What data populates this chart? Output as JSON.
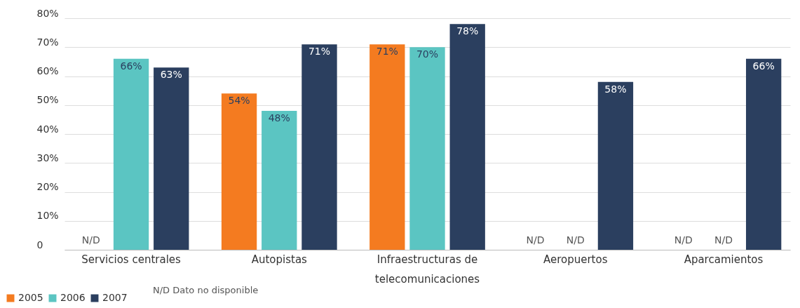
{
  "chart_data": {
    "type": "bar",
    "categories": [
      "Servicios centrales",
      "Autopistas",
      "Infraestructuras de telecomunicaciones",
      "Aeropuertos",
      "Aparcamientos"
    ],
    "series": [
      {
        "name": "2005",
        "color": "#f47b20",
        "values": [
          null,
          54,
          71,
          null,
          null
        ],
        "value_labels": [
          "N/D",
          "54%",
          "71%",
          "N/D",
          "N/D"
        ]
      },
      {
        "name": "2006",
        "color": "#5bc5c2",
        "values": [
          66,
          48,
          70,
          null,
          null
        ],
        "value_labels": [
          "66%",
          "48%",
          "70%",
          "N/D",
          "N/D"
        ]
      },
      {
        "name": "2007",
        "color": "#2b3f5f",
        "values": [
          63,
          71,
          78,
          58,
          66
        ],
        "value_labels": [
          "63%",
          "71%",
          "78%",
          "58%",
          "66%"
        ]
      }
    ],
    "ylim": [
      0,
      80
    ],
    "yticks": [
      0,
      {
        "value": 10,
        "label": "10%"
      },
      {
        "value": 20,
        "label": "20%"
      },
      {
        "value": 30,
        "label": "30%"
      },
      {
        "value": 40,
        "label": "40%"
      },
      {
        "value": 50,
        "label": "50%"
      },
      {
        "value": 60,
        "label": "60%"
      },
      {
        "value": 70,
        "label": "70%"
      },
      {
        "value": 80,
        "label": "80%"
      }
    ],
    "grid": "y",
    "legend": "bottom left",
    "annotations": [
      "N/D Dato no disponible"
    ]
  }
}
